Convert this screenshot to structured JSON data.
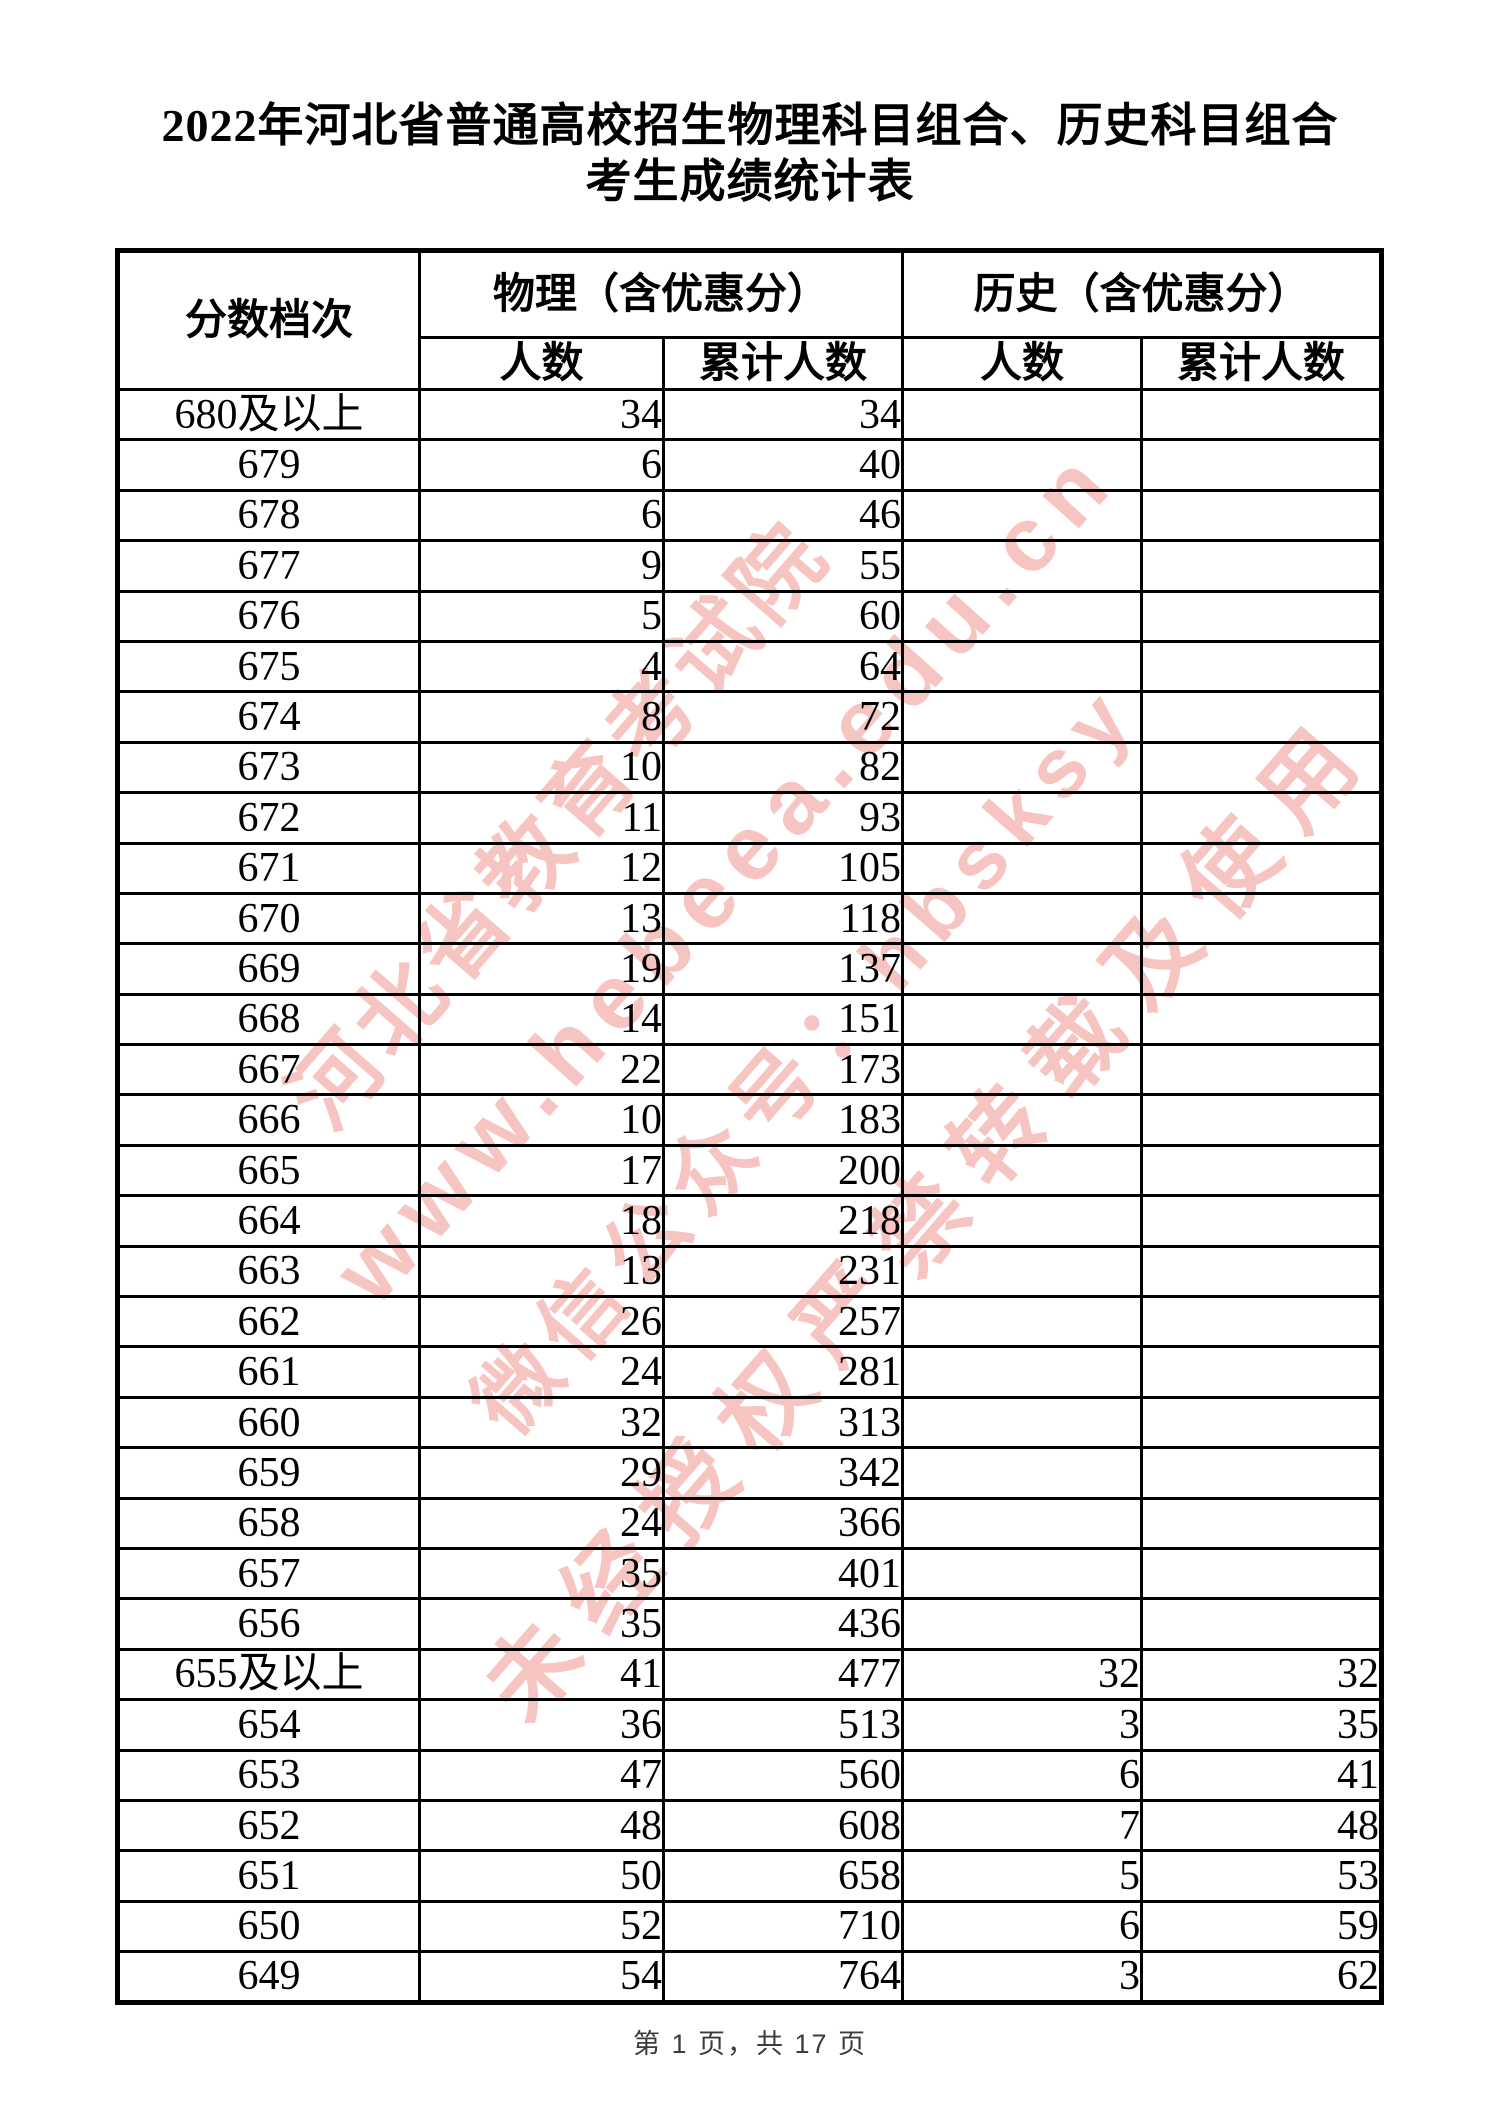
{
  "page": {
    "title_line1": "2022年河北省普通高校招生物理科目组合、历史科目组合",
    "title_line2": "考生成绩统计表",
    "footer": "第 1 页，共 17 页"
  },
  "table": {
    "header": {
      "score_label": "分数档次",
      "physics_label": "物理（含优惠分）",
      "history_label": "历史（含优惠分）",
      "count_label": "人数",
      "cumulative_label": "累计人数"
    },
    "rows": [
      {
        "score": "680及以上",
        "physics_count": "34",
        "physics_cum": "34",
        "history_count": "",
        "history_cum": ""
      },
      {
        "score": "679",
        "physics_count": "6",
        "physics_cum": "40",
        "history_count": "",
        "history_cum": ""
      },
      {
        "score": "678",
        "physics_count": "6",
        "physics_cum": "46",
        "history_count": "",
        "history_cum": ""
      },
      {
        "score": "677",
        "physics_count": "9",
        "physics_cum": "55",
        "history_count": "",
        "history_cum": ""
      },
      {
        "score": "676",
        "physics_count": "5",
        "physics_cum": "60",
        "history_count": "",
        "history_cum": ""
      },
      {
        "score": "675",
        "physics_count": "4",
        "physics_cum": "64",
        "history_count": "",
        "history_cum": ""
      },
      {
        "score": "674",
        "physics_count": "8",
        "physics_cum": "72",
        "history_count": "",
        "history_cum": ""
      },
      {
        "score": "673",
        "physics_count": "10",
        "physics_cum": "82",
        "history_count": "",
        "history_cum": ""
      },
      {
        "score": "672",
        "physics_count": "11",
        "physics_cum": "93",
        "history_count": "",
        "history_cum": ""
      },
      {
        "score": "671",
        "physics_count": "12",
        "physics_cum": "105",
        "history_count": "",
        "history_cum": ""
      },
      {
        "score": "670",
        "physics_count": "13",
        "physics_cum": "118",
        "history_count": "",
        "history_cum": ""
      },
      {
        "score": "669",
        "physics_count": "19",
        "physics_cum": "137",
        "history_count": "",
        "history_cum": ""
      },
      {
        "score": "668",
        "physics_count": "14",
        "physics_cum": "151",
        "history_count": "",
        "history_cum": ""
      },
      {
        "score": "667",
        "physics_count": "22",
        "physics_cum": "173",
        "history_count": "",
        "history_cum": ""
      },
      {
        "score": "666",
        "physics_count": "10",
        "physics_cum": "183",
        "history_count": "",
        "history_cum": ""
      },
      {
        "score": "665",
        "physics_count": "17",
        "physics_cum": "200",
        "history_count": "",
        "history_cum": ""
      },
      {
        "score": "664",
        "physics_count": "18",
        "physics_cum": "218",
        "history_count": "",
        "history_cum": ""
      },
      {
        "score": "663",
        "physics_count": "13",
        "physics_cum": "231",
        "history_count": "",
        "history_cum": ""
      },
      {
        "score": "662",
        "physics_count": "26",
        "physics_cum": "257",
        "history_count": "",
        "history_cum": ""
      },
      {
        "score": "661",
        "physics_count": "24",
        "physics_cum": "281",
        "history_count": "",
        "history_cum": ""
      },
      {
        "score": "660",
        "physics_count": "32",
        "physics_cum": "313",
        "history_count": "",
        "history_cum": ""
      },
      {
        "score": "659",
        "physics_count": "29",
        "physics_cum": "342",
        "history_count": "",
        "history_cum": ""
      },
      {
        "score": "658",
        "physics_count": "24",
        "physics_cum": "366",
        "history_count": "",
        "history_cum": ""
      },
      {
        "score": "657",
        "physics_count": "35",
        "physics_cum": "401",
        "history_count": "",
        "history_cum": ""
      },
      {
        "score": "656",
        "physics_count": "35",
        "physics_cum": "436",
        "history_count": "",
        "history_cum": ""
      },
      {
        "score": "655及以上",
        "physics_count": "41",
        "physics_cum": "477",
        "history_count": "32",
        "history_cum": "32"
      },
      {
        "score": "654",
        "physics_count": "36",
        "physics_cum": "513",
        "history_count": "3",
        "history_cum": "35"
      },
      {
        "score": "653",
        "physics_count": "47",
        "physics_cum": "560",
        "history_count": "6",
        "history_cum": "41"
      },
      {
        "score": "652",
        "physics_count": "48",
        "physics_cum": "608",
        "history_count": "7",
        "history_cum": "48"
      },
      {
        "score": "651",
        "physics_count": "50",
        "physics_cum": "658",
        "history_count": "5",
        "history_cum": "53"
      },
      {
        "score": "650",
        "physics_count": "52",
        "physics_cum": "710",
        "history_count": "6",
        "history_cum": "59"
      },
      {
        "score": "649",
        "physics_count": "54",
        "physics_cum": "764",
        "history_count": "3",
        "history_cum": "62"
      }
    ]
  },
  "watermark": {
    "color": "#ef7f78",
    "lines": [
      "河北省教育考试院",
      "www.hebeea.edu.cn",
      "微信公众号：hbsksy",
      "未经授权严禁转载及使用"
    ]
  }
}
